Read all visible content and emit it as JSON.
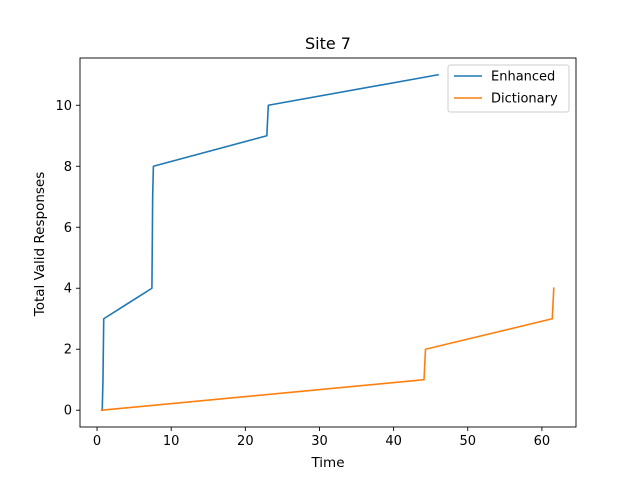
{
  "chart_data": {
    "type": "line",
    "title": "Site 7",
    "xlabel": "Time",
    "ylabel": "Total Valid Responses",
    "xlim": [
      -2.3,
      64.6
    ],
    "ylim": [
      -0.55,
      11.55
    ],
    "xticks": [
      0,
      10,
      20,
      30,
      40,
      50,
      60
    ],
    "yticks": [
      0,
      2,
      4,
      6,
      8,
      10
    ],
    "grid": false,
    "legend_position": "top-right",
    "series": [
      {
        "name": "Enhanced",
        "color": "#1f77b4",
        "points": [
          [
            0.7,
            0
          ],
          [
            0.8,
            1
          ],
          [
            0.9,
            3
          ],
          [
            7.4,
            4
          ],
          [
            7.5,
            7
          ],
          [
            7.6,
            8
          ],
          [
            22.9,
            9
          ],
          [
            23.1,
            10
          ],
          [
            46.0,
            11
          ]
        ]
      },
      {
        "name": "Dictionary",
        "color": "#ff7f0e",
        "points": [
          [
            0.6,
            0
          ],
          [
            44.1,
            1
          ],
          [
            44.3,
            2
          ],
          [
            61.4,
            3
          ],
          [
            61.6,
            4
          ]
        ]
      }
    ]
  }
}
